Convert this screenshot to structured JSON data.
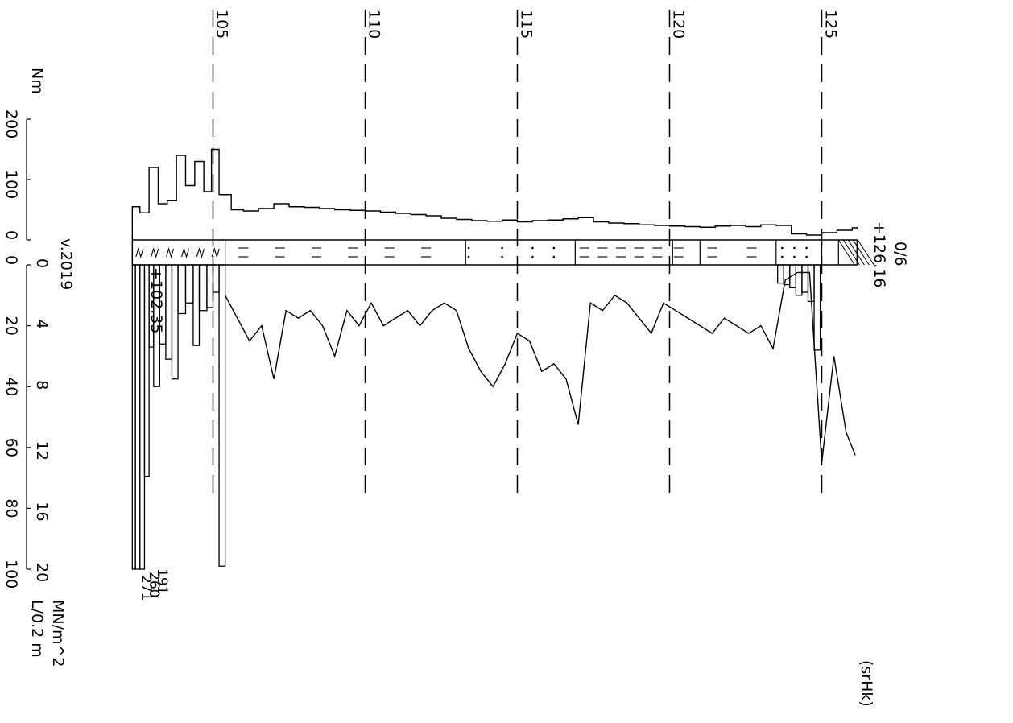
{
  "chart_data": [
    {
      "type": "line",
      "title": "",
      "xaxis": {
        "ticks": [
          "105",
          "110",
          "115",
          "120",
          "125"
        ],
        "range": [
          102.35,
          126.16
        ],
        "grid": "dashed"
      },
      "top_panel": {
        "unit": "Nm",
        "ticks": [
          "0",
          "100",
          "200"
        ],
        "range": [
          0,
          200
        ],
        "series_name": "",
        "x": [
          102.35,
          102.6,
          102.9,
          103.2,
          103.5,
          103.8,
          104.1,
          104.4,
          104.7,
          104.95,
          105.2,
          105.6,
          106,
          106.5,
          107,
          107.5,
          108,
          108.5,
          109,
          109.5,
          110,
          110.5,
          111,
          111.5,
          112,
          112.5,
          113,
          113.5,
          114,
          114.5,
          115,
          115.5,
          116,
          116.5,
          117,
          117.5,
          118,
          118.5,
          119,
          119.5,
          120,
          120.5,
          121,
          121.5,
          122,
          122.5,
          123,
          123.5,
          124,
          124.5,
          125,
          125.5,
          126,
          126.16
        ],
        "values": [
          55,
          45,
          120,
          60,
          65,
          140,
          90,
          130,
          80,
          150,
          75,
          50,
          48,
          52,
          60,
          55,
          54,
          52,
          50,
          49,
          48,
          46,
          44,
          42,
          40,
          36,
          34,
          32,
          31,
          33,
          30,
          32,
          33,
          35,
          37,
          30,
          28,
          27,
          25,
          24,
          23,
          22,
          21,
          23,
          24,
          22,
          25,
          24,
          10,
          8,
          12,
          16,
          20,
          18
        ]
      },
      "strip": {
        "left_label": "+102.35",
        "right_label": "+126.16",
        "right_top_label": "0/6",
        "corner_label": "v.2019"
      },
      "bottom_panel": {
        "axis_outer_label": "MN/m^2",
        "axis_outer_ticks": [
          "0",
          "4",
          "8",
          "12",
          "16",
          "20"
        ],
        "axis_inner_label": "L/0.2 m",
        "axis_inner_ticks": [
          "0",
          "20",
          "40",
          "60",
          "80",
          "100"
        ],
        "x": [
          105.4,
          105.8,
          106.2,
          106.6,
          107.0,
          107.4,
          107.8,
          108.2,
          108.6,
          109.0,
          109.4,
          109.8,
          110.2,
          110.6,
          111.0,
          111.4,
          111.8,
          112.2,
          112.6,
          113.0,
          113.4,
          113.8,
          114.2,
          114.6,
          115.0,
          115.4,
          115.8,
          116.2,
          116.6,
          117.0,
          117.4,
          117.8,
          118.2,
          118.6,
          119.0,
          119.4,
          119.8,
          120.2,
          120.6,
          121.0,
          121.4,
          121.8,
          122.2,
          122.6,
          123.0,
          123.4,
          123.8,
          124.2,
          124.6,
          125.0,
          125.4,
          125.8,
          126.1
        ],
        "values": [
          2.0,
          3.5,
          5.0,
          4.0,
          7.5,
          3.0,
          3.5,
          3.0,
          4.0,
          6.0,
          3.0,
          4.0,
          2.5,
          4.0,
          3.5,
          3.0,
          4.0,
          3.0,
          2.5,
          3.0,
          5.5,
          7.0,
          8.0,
          6.5,
          4.5,
          5.0,
          7.0,
          6.5,
          7.5,
          10.5,
          2.5,
          3.0,
          2.0,
          2.5,
          3.5,
          4.5,
          2.5,
          3.0,
          3.5,
          4.0,
          4.5,
          3.5,
          4.0,
          4.5,
          4.0,
          5.5,
          1.0,
          0.5,
          0.5,
          13.0,
          6.0,
          11.0,
          12.5
        ],
        "bars_label_values": [
          "191",
          "260",
          "271"
        ]
      },
      "footer_label": "(srHk)"
    }
  ]
}
